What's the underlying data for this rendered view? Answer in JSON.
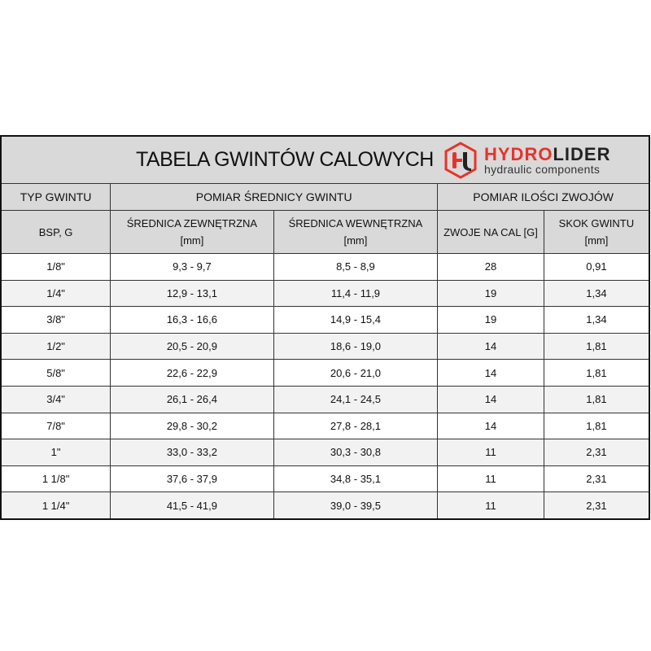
{
  "title": "TABELA GWINTÓW CALOWYCH",
  "logo": {
    "brand_red": "HYDRO",
    "brand_dark": "LIDER",
    "tagline": "hydraulic components",
    "accent": "#e8322a"
  },
  "headers": {
    "typ": "TYP GWINTU",
    "pomiar_srednicy": "POMIAR ŚREDNICY GWINTU",
    "pomiar_zwojow": "POMIAR ILOŚCI ZWOJÓW",
    "bsp": "BSP, G",
    "zewn": "ŚREDNICA ZEWNĘTRZNA",
    "zewn_unit": "[mm]",
    "wewn": "ŚREDNICA WEWNĘTRZNA",
    "wewn_unit": "[mm]",
    "zwoje": "ZWOJE NA CAL [G]",
    "skok": "SKOK GWINTU",
    "skok_unit": "[mm]"
  },
  "rows": [
    [
      "1/8\"",
      "9,3 - 9,7",
      "8,5 - 8,9",
      "28",
      "0,91"
    ],
    [
      "1/4\"",
      "12,9 - 13,1",
      "11,4 - 11,9",
      "19",
      "1,34"
    ],
    [
      "3/8\"",
      "16,3 - 16,6",
      "14,9 - 15,4",
      "19",
      "1,34"
    ],
    [
      "1/2\"",
      "20,5 - 20,9",
      "18,6 - 19,0",
      "14",
      "1,81"
    ],
    [
      "5/8\"",
      "22,6 - 22,9",
      "20,6 - 21,0",
      "14",
      "1,81"
    ],
    [
      "3/4\"",
      "26,1 - 26,4",
      "24,1 - 24,5",
      "14",
      "1,81"
    ],
    [
      "7/8\"",
      "29,8 - 30,2",
      "27,8 - 28,1",
      "14",
      "1,81"
    ],
    [
      "1\"",
      "33,0 - 33,2",
      "30,3 - 30,8",
      "11",
      "2,31"
    ],
    [
      "1 1/8\"",
      "37,6 - 37,9",
      "34,8 - 35,1",
      "11",
      "2,31"
    ],
    [
      "1 1/4\"",
      "41,5 - 41,9",
      "39,0 - 39,5",
      "11",
      "2,31"
    ]
  ]
}
